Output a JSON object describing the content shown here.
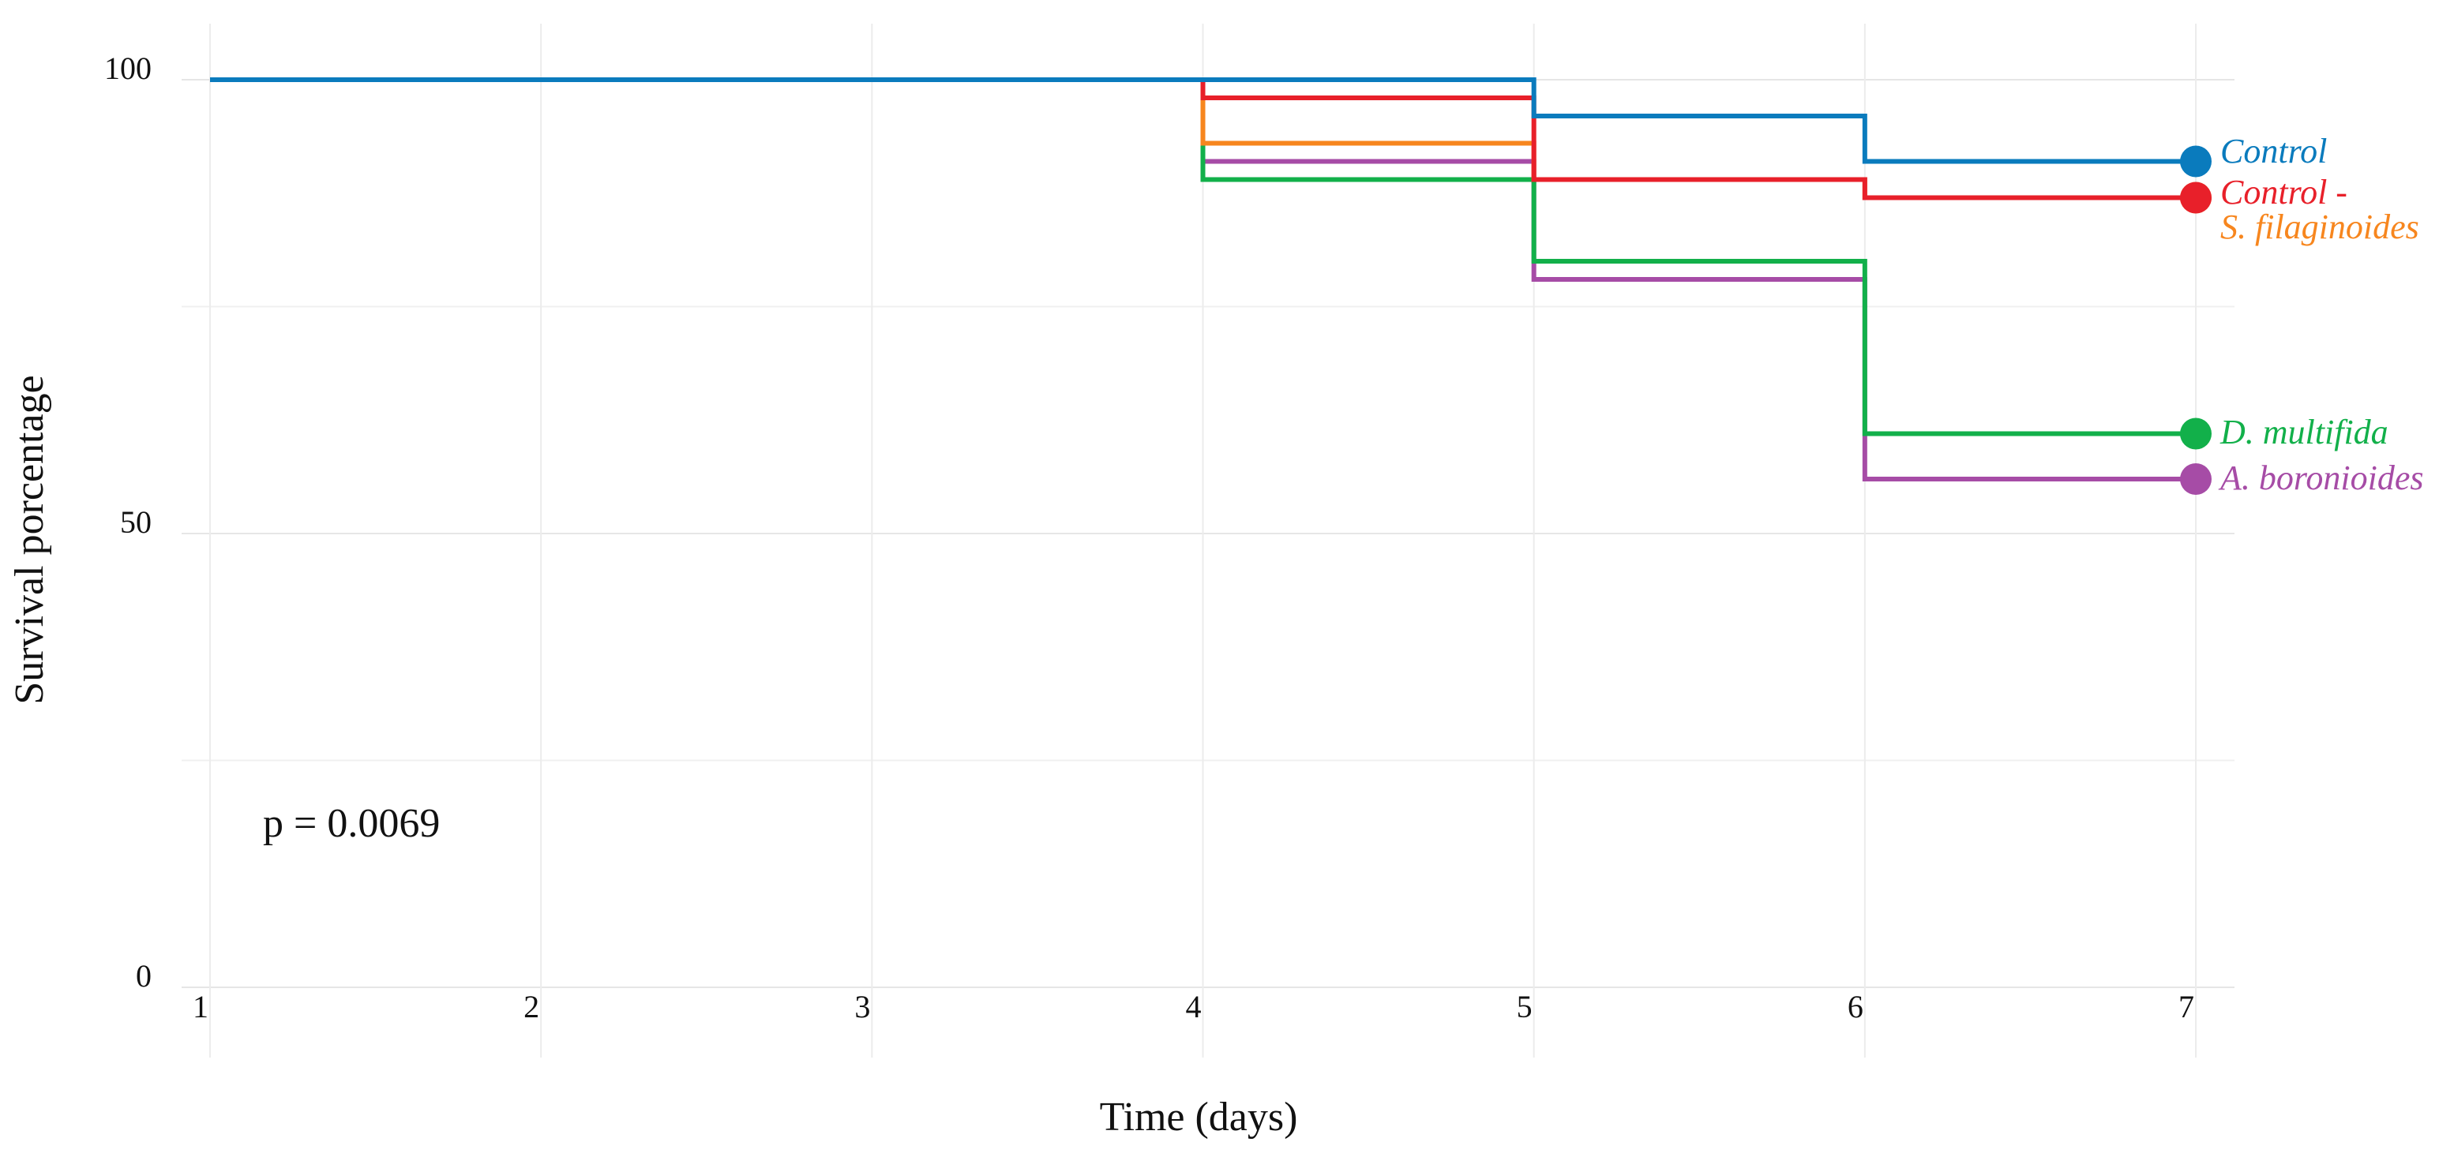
{
  "chart_data": {
    "type": "line",
    "step": true,
    "x": [
      1,
      2,
      3,
      4,
      5,
      6,
      7
    ],
    "xlabel": "Time (days)",
    "ylabel": "Survival porcentage",
    "annotation": "p = 0.0069",
    "xlim": [
      1,
      7
    ],
    "xticks": [
      1,
      2,
      3,
      4,
      5,
      6,
      7
    ],
    "ylim": [
      0,
      105
    ],
    "yticks": [
      0,
      50,
      100
    ],
    "grid": true,
    "series": [
      {
        "name": "Control",
        "color": "#0a7bbd",
        "values": [
          100,
          100,
          100,
          100,
          96,
          91,
          91
        ]
      },
      {
        "name": "Control -",
        "color": "#e8202a",
        "values": [
          100,
          100,
          100,
          98,
          89,
          87,
          87
        ]
      },
      {
        "name": "S. filaginoides",
        "color": "#f7861e",
        "values": [
          100,
          100,
          100,
          93,
          89,
          87,
          87
        ]
      },
      {
        "name": "D. multifida",
        "color": "#12b04a",
        "values": [
          100,
          100,
          100,
          89,
          80,
          61,
          61
        ]
      },
      {
        "name": "A. boronioides",
        "color": "#a64ca6",
        "values": [
          100,
          100,
          100,
          91,
          78,
          56,
          56
        ]
      }
    ]
  }
}
